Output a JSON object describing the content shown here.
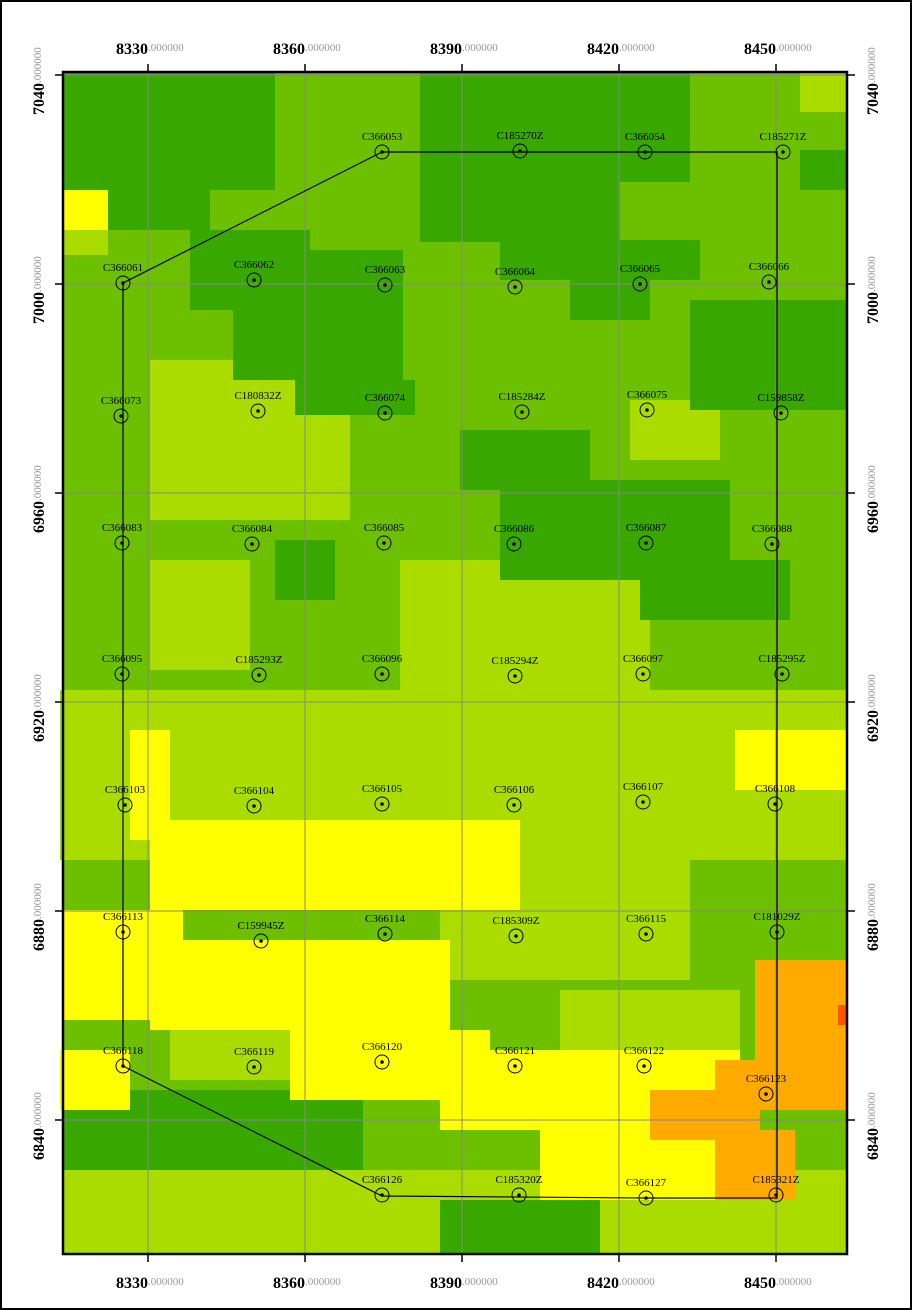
{
  "map": {
    "xticks": [
      8330,
      8360,
      8390,
      8420,
      8450
    ],
    "yticks": [
      7040,
      7000,
      6960,
      6920,
      6880,
      6840
    ],
    "tick_suffix": ".000000",
    "stations": [
      "C366053",
      "C185270Z",
      "C366054",
      "C185271Z",
      "C366061",
      "C366062",
      "C366063",
      "C366064",
      "C366065",
      "C366066",
      "C366073",
      "C180832Z",
      "C366074",
      "C185284Z",
      "C366075",
      "C159858Z",
      "C366083",
      "C366084",
      "C366085",
      "C366086",
      "C366087",
      "C366088",
      "C366095",
      "C185293Z",
      "C366096",
      "C185294Z",
      "C366097",
      "C185295Z",
      "C366103",
      "C366104",
      "C366105",
      "C366106",
      "C366107",
      "C366108",
      "C366113",
      "C159945Z",
      "C366114",
      "C185309Z",
      "C366115",
      "C181029Z",
      "C366118",
      "C366119",
      "C366120",
      "C366121",
      "C366122",
      "C366123",
      "C366126",
      "C185320Z",
      "C366127",
      "C185321Z"
    ]
  }
}
